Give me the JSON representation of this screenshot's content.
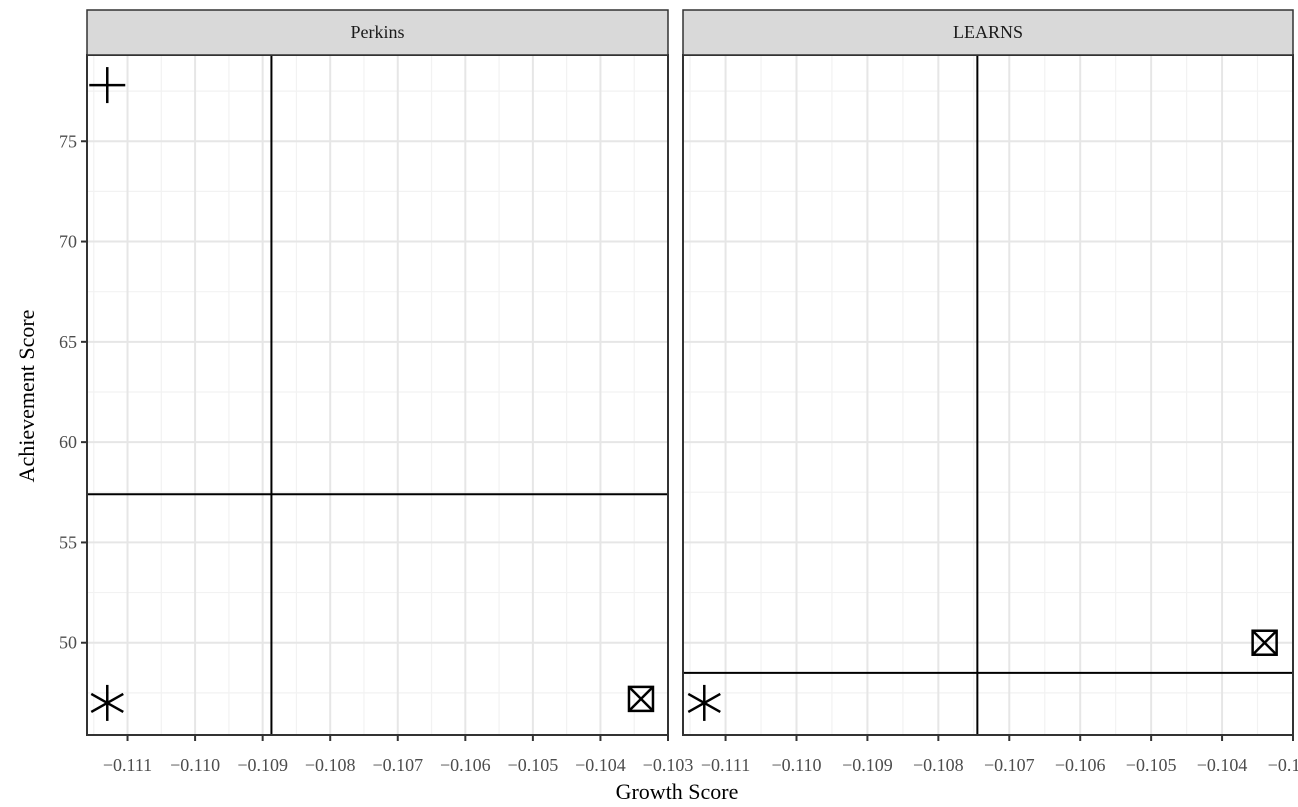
{
  "chart_data": {
    "type": "scatter",
    "xlabel": "Growth Score",
    "ylabel": "Achievement Score",
    "xlim": [
      -0.1116,
      -0.103
    ],
    "ylim": [
      45.4,
      79.3
    ],
    "x_ticks": [
      -0.111,
      -0.11,
      -0.109,
      -0.108,
      -0.107,
      -0.106,
      -0.105,
      -0.104,
      -0.103
    ],
    "x_tick_labels": [
      "−0.111",
      "−0.110",
      "−0.109",
      "−0.108",
      "−0.107",
      "−0.106",
      "−0.105",
      "−0.104",
      "−0.103"
    ],
    "y_ticks": [
      50,
      55,
      60,
      65,
      70,
      75
    ],
    "y_tick_labels": [
      "50",
      "55",
      "60",
      "65",
      "70",
      "75"
    ],
    "grid": true,
    "panels": [
      {
        "title": "Perkins",
        "points": [
          {
            "x": -0.1113,
            "y": 77.8,
            "shape": "plus"
          },
          {
            "x": -0.1113,
            "y": 47.0,
            "shape": "asterisk"
          },
          {
            "x": -0.1034,
            "y": 47.2,
            "shape": "square-cross"
          }
        ],
        "vline": -0.10887,
        "hline": 57.4
      },
      {
        "title": "LEARNS",
        "points": [
          {
            "x": -0.1113,
            "y": 47.0,
            "shape": "asterisk"
          },
          {
            "x": -0.1034,
            "y": 50.0,
            "shape": "square-cross"
          }
        ],
        "vline": -0.10745,
        "hline": 48.5
      }
    ]
  }
}
